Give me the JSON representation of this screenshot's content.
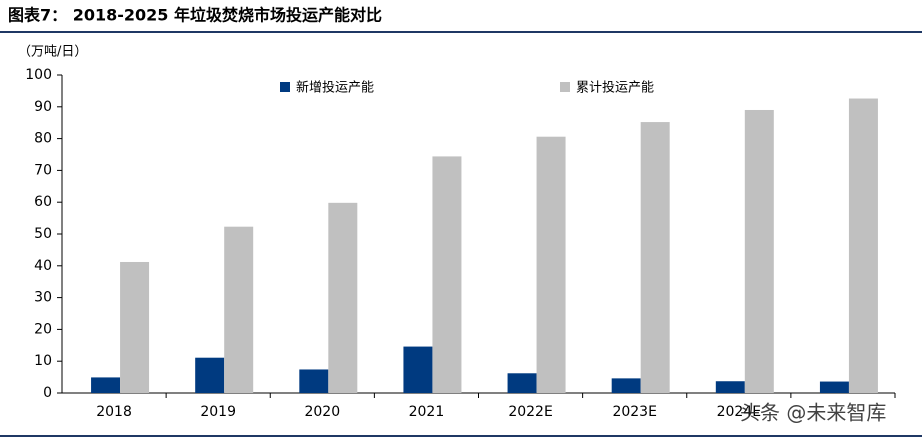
{
  "chart_data": {
    "type": "bar",
    "title": "图表7：  2018-2025 年垃圾焚烧市场投运产能对比",
    "y_label": "（万吨/日）",
    "categories": [
      "2018",
      "2019",
      "2020",
      "2021",
      "2022E",
      "2023E",
      "2024E",
      null
    ],
    "series": [
      {
        "name": "新增投运产能",
        "color": "#003a80",
        "values": [
          4.9,
          11.1,
          7.4,
          14.6,
          6.2,
          4.6,
          3.7,
          3.6
        ]
      },
      {
        "name": "累计投运产能",
        "color": "#c0c0c0",
        "values": [
          41.2,
          52.3,
          59.8,
          74.4,
          80.6,
          85.2,
          89.0,
          92.6
        ]
      }
    ],
    "ylim": [
      0,
      100
    ],
    "yticks": [
      0,
      10,
      20,
      30,
      40,
      50,
      60,
      70,
      80,
      90,
      100
    ],
    "watermark": "头条 @未来智库"
  }
}
